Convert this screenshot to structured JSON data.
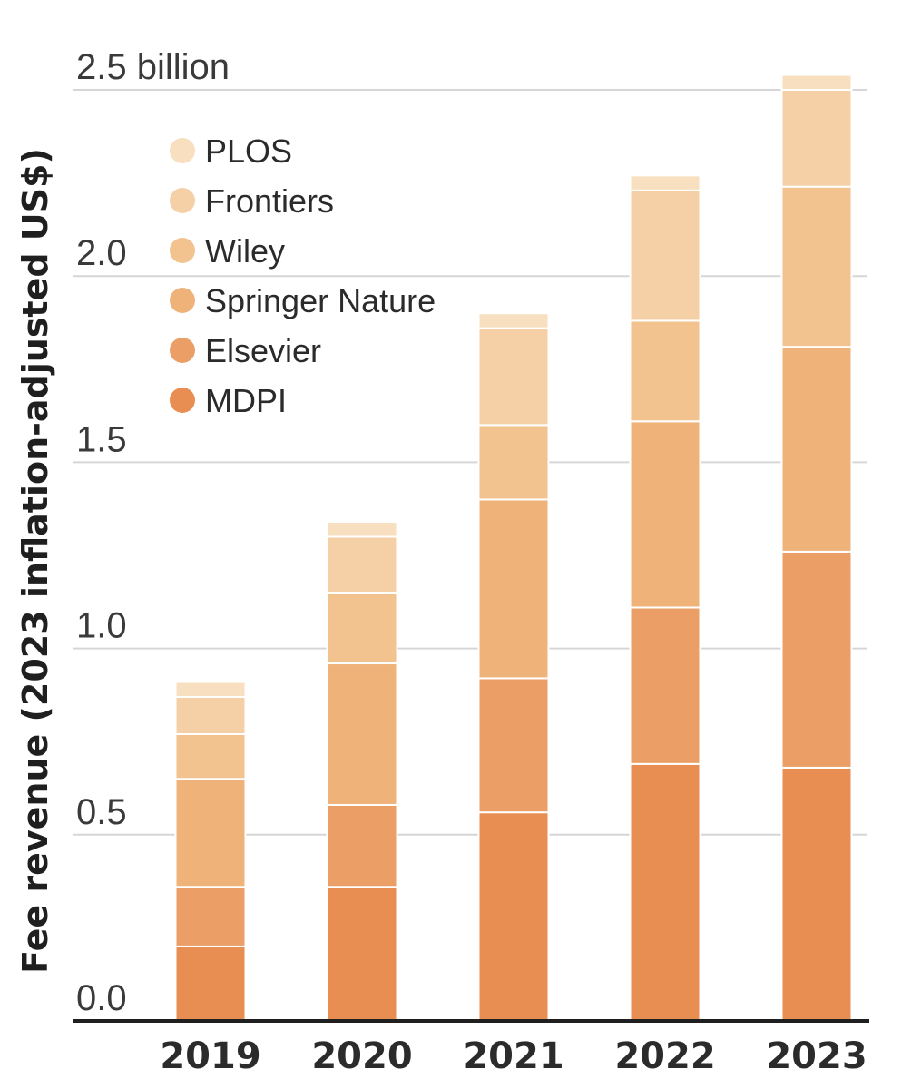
{
  "chart_data": {
    "type": "bar",
    "stacked": true,
    "categories": [
      "2019",
      "2020",
      "2021",
      "2022",
      "2023"
    ],
    "series": [
      {
        "name": "MDPI",
        "color": "#e88e52",
        "values": [
          0.2,
          0.36,
          0.56,
          0.69,
          0.68
        ]
      },
      {
        "name": "Elsevier",
        "color": "#eb9f66",
        "values": [
          0.16,
          0.22,
          0.36,
          0.42,
          0.58
        ]
      },
      {
        "name": "Springer Nature",
        "color": "#efb37a",
        "values": [
          0.29,
          0.38,
          0.48,
          0.5,
          0.55
        ]
      },
      {
        "name": "Wiley",
        "color": "#f2c28f",
        "values": [
          0.12,
          0.19,
          0.2,
          0.27,
          0.43
        ]
      },
      {
        "name": "Frontiers",
        "color": "#f5d0a6",
        "values": [
          0.1,
          0.15,
          0.26,
          0.35,
          0.26
        ]
      },
      {
        "name": "PLOS",
        "color": "#f8dfbf",
        "values": [
          0.04,
          0.04,
          0.04,
          0.04,
          0.04
        ]
      }
    ],
    "yticks": [
      "0.0",
      "0.5",
      "1.0",
      "1.5",
      "2.0",
      "2.5 billion"
    ],
    "ylabel": "Fee revenue (2023 inflation-adjusted US$)",
    "xlabel": "",
    "ylim": [
      0,
      2.5
    ],
    "grid": true,
    "legend_position": "top-left",
    "legend_order": [
      "PLOS",
      "Frontiers",
      "Wiley",
      "Springer Nature",
      "Elsevier",
      "MDPI"
    ]
  }
}
